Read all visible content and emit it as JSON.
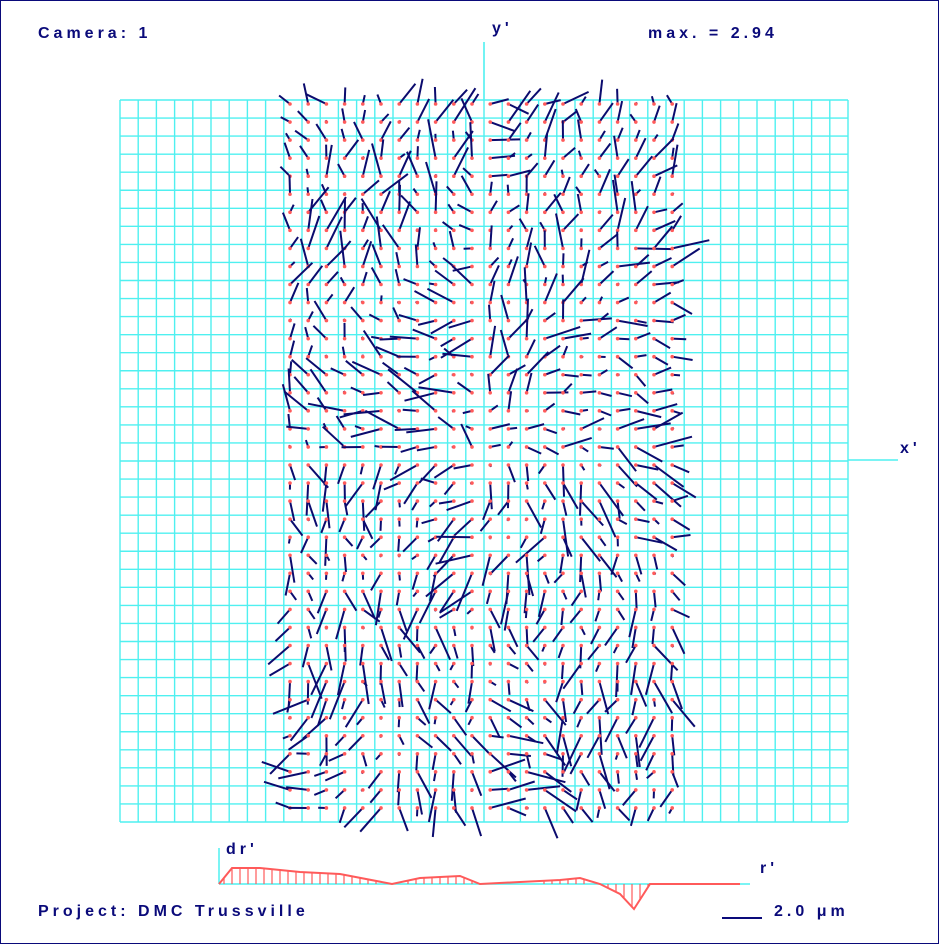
{
  "header": {
    "camera": "Camera:  1",
    "max": "max. = 2.94"
  },
  "axes": {
    "y": "y'",
    "x": "x'",
    "dr": "dr'",
    "r": "r'"
  },
  "footer": {
    "project": "Project:  DMC   Trussville",
    "scale": "2.0 μm"
  },
  "colors": {
    "grid": "#4ff0f0",
    "vector": "#0b0b6e",
    "point": "#ff5a5a",
    "profile": "#ff5a5a",
    "text": "#0a0a7a"
  }
}
